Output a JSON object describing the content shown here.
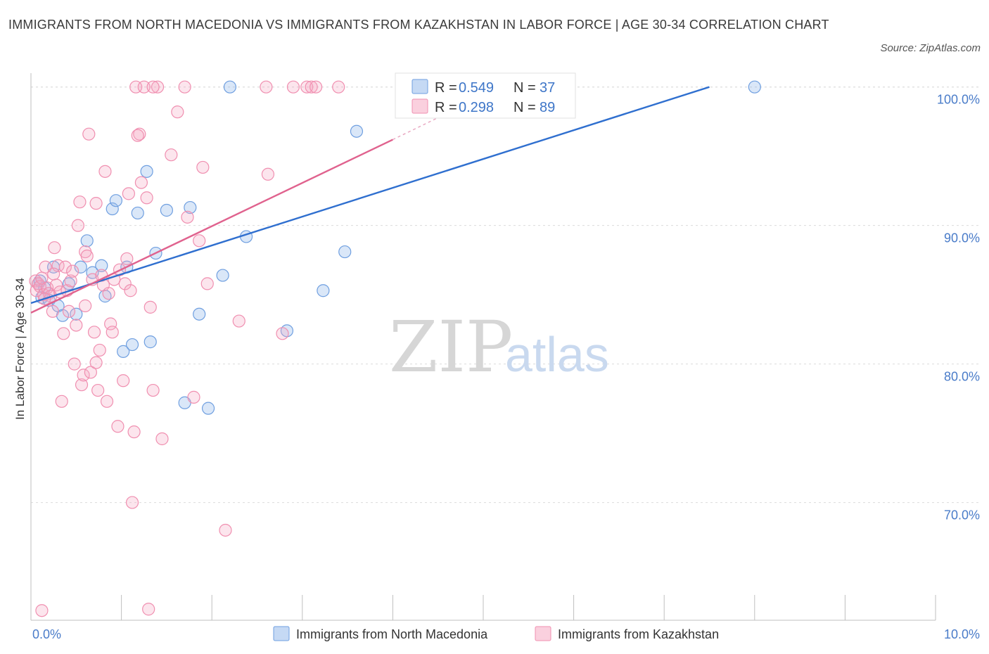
{
  "header": {
    "title": "IMMIGRANTS FROM NORTH MACEDONIA VS IMMIGRANTS FROM KAZAKHSTAN IN LABOR FORCE | AGE 30-34 CORRELATION CHART",
    "source": "Source: ZipAtlas.com"
  },
  "chart_data": {
    "type": "scatter",
    "title": "IMMIGRANTS FROM NORTH MACEDONIA VS IMMIGRANTS FROM KAZAKHSTAN IN LABOR FORCE | AGE 30-34 CORRELATION CHART",
    "xlabel": "",
    "ylabel": "In Labor Force | Age 30-34",
    "xlim": [
      0,
      10
    ],
    "ylim": [
      61.5,
      101
    ],
    "x_tick_labels": [
      "0.0%",
      "10.0%"
    ],
    "y_ticks": [
      70,
      80,
      90,
      100
    ],
    "y_tick_labels": [
      "70.0%",
      "80.0%",
      "90.0%",
      "100.0%"
    ],
    "grid": true,
    "legend_position": "bottom-center",
    "watermark": {
      "zip": "ZIP",
      "atlas": "atlas"
    },
    "series": [
      {
        "name": "Immigrants from North Macedonia",
        "color": "#6f9fe0",
        "line_color": "#2f6fcf",
        "stats": {
          "r_label": "R =",
          "r_value": "0.549",
          "n_label": "N =",
          "n_value": "37"
        },
        "trend": {
          "x0": 0.0,
          "y0": 84.4,
          "x1": 7.5,
          "y1": 100.0
        },
        "points": [
          [
            0.08,
            85.8
          ],
          [
            0.1,
            86.0
          ],
          [
            0.12,
            84.8
          ],
          [
            0.15,
            85.5
          ],
          [
            0.2,
            84.6
          ],
          [
            0.25,
            87.0
          ],
          [
            0.3,
            84.2
          ],
          [
            0.35,
            83.5
          ],
          [
            0.42,
            85.8
          ],
          [
            0.5,
            83.6
          ],
          [
            0.55,
            87.0
          ],
          [
            0.62,
            88.9
          ],
          [
            0.68,
            86.6
          ],
          [
            0.78,
            87.1
          ],
          [
            0.82,
            84.9
          ],
          [
            0.9,
            91.2
          ],
          [
            0.94,
            91.8
          ],
          [
            1.02,
            80.9
          ],
          [
            1.06,
            87.0
          ],
          [
            1.12,
            81.4
          ],
          [
            1.18,
            90.9
          ],
          [
            1.28,
            93.9
          ],
          [
            1.32,
            81.6
          ],
          [
            1.38,
            88.0
          ],
          [
            1.5,
            91.1
          ],
          [
            1.7,
            77.2
          ],
          [
            1.76,
            91.3
          ],
          [
            1.86,
            83.6
          ],
          [
            1.96,
            76.8
          ],
          [
            2.12,
            86.4
          ],
          [
            2.2,
            100.0
          ],
          [
            2.38,
            89.2
          ],
          [
            2.83,
            82.4
          ],
          [
            3.23,
            85.3
          ],
          [
            3.47,
            88.1
          ],
          [
            3.6,
            96.8
          ],
          [
            8.0,
            100.0
          ]
        ]
      },
      {
        "name": "Immigrants from Kazakhstan",
        "color": "#f08fb0",
        "line_color": "#e0628e",
        "stats": {
          "r_label": "R =",
          "r_value": "0.298",
          "n_label": "N =",
          "n_value": "89"
        },
        "trend": {
          "x0": 0.0,
          "y0": 83.7,
          "x1": 4.0,
          "y1": 96.2
        },
        "trend_dashed": {
          "x0": 4.0,
          "y0": 96.2,
          "x1": 4.6,
          "y1": 98.1
        },
        "points": [
          [
            0.05,
            86.0
          ],
          [
            0.06,
            85.3
          ],
          [
            0.08,
            85.8
          ],
          [
            0.1,
            85.6
          ],
          [
            0.12,
            86.2
          ],
          [
            0.14,
            85.0
          ],
          [
            0.16,
            87.0
          ],
          [
            0.18,
            85.5
          ],
          [
            0.2,
            85.1
          ],
          [
            0.22,
            84.9
          ],
          [
            0.24,
            83.8
          ],
          [
            0.26,
            88.4
          ],
          [
            0.28,
            85.7
          ],
          [
            0.3,
            87.1
          ],
          [
            0.32,
            85.2
          ],
          [
            0.34,
            77.3
          ],
          [
            0.36,
            82.2
          ],
          [
            0.38,
            87.0
          ],
          [
            0.4,
            85.3
          ],
          [
            0.42,
            83.8
          ],
          [
            0.44,
            86.0
          ],
          [
            0.46,
            86.7
          ],
          [
            0.48,
            80.0
          ],
          [
            0.5,
            82.8
          ],
          [
            0.52,
            90.0
          ],
          [
            0.54,
            91.7
          ],
          [
            0.56,
            78.5
          ],
          [
            0.58,
            79.2
          ],
          [
            0.6,
            88.1
          ],
          [
            0.62,
            87.8
          ],
          [
            0.64,
            96.6
          ],
          [
            0.66,
            79.4
          ],
          [
            0.68,
            86.1
          ],
          [
            0.7,
            82.3
          ],
          [
            0.72,
            91.6
          ],
          [
            0.74,
            78.1
          ],
          [
            0.76,
            81.0
          ],
          [
            0.78,
            86.4
          ],
          [
            0.8,
            85.7
          ],
          [
            0.82,
            93.9
          ],
          [
            0.84,
            77.3
          ],
          [
            0.86,
            85.1
          ],
          [
            0.88,
            82.9
          ],
          [
            0.9,
            82.3
          ],
          [
            0.92,
            86.1
          ],
          [
            0.96,
            75.5
          ],
          [
            0.98,
            86.8
          ],
          [
            1.02,
            78.8
          ],
          [
            1.04,
            85.8
          ],
          [
            1.06,
            87.6
          ],
          [
            1.08,
            92.3
          ],
          [
            1.1,
            85.3
          ],
          [
            1.14,
            75.1
          ],
          [
            1.16,
            100.0
          ],
          [
            1.2,
            96.6
          ],
          [
            1.22,
            93.1
          ],
          [
            1.25,
            100.0
          ],
          [
            1.28,
            92.0
          ],
          [
            1.32,
            84.1
          ],
          [
            1.35,
            78.1
          ],
          [
            1.4,
            100.0
          ],
          [
            1.45,
            74.6
          ],
          [
            1.55,
            95.1
          ],
          [
            1.62,
            98.2
          ],
          [
            1.7,
            100.0
          ],
          [
            1.73,
            90.6
          ],
          [
            1.8,
            77.6
          ],
          [
            1.86,
            88.9
          ],
          [
            1.9,
            94.2
          ],
          [
            1.95,
            85.8
          ],
          [
            2.3,
            83.1
          ],
          [
            2.6,
            100.0
          ],
          [
            2.62,
            93.7
          ],
          [
            2.78,
            82.2
          ],
          [
            2.9,
            100.0
          ],
          [
            3.05,
            100.0
          ],
          [
            3.1,
            100.0
          ],
          [
            3.15,
            100.0
          ],
          [
            3.4,
            100.0
          ],
          [
            0.12,
            62.2
          ],
          [
            1.12,
            70.0
          ],
          [
            2.15,
            68.0
          ],
          [
            1.3,
            62.3
          ],
          [
            0.6,
            84.2
          ],
          [
            0.72,
            80.1
          ],
          [
            1.18,
            96.5
          ],
          [
            1.35,
            100.0
          ],
          [
            0.25,
            86.5
          ],
          [
            0.15,
            84.7
          ]
        ]
      }
    ]
  }
}
